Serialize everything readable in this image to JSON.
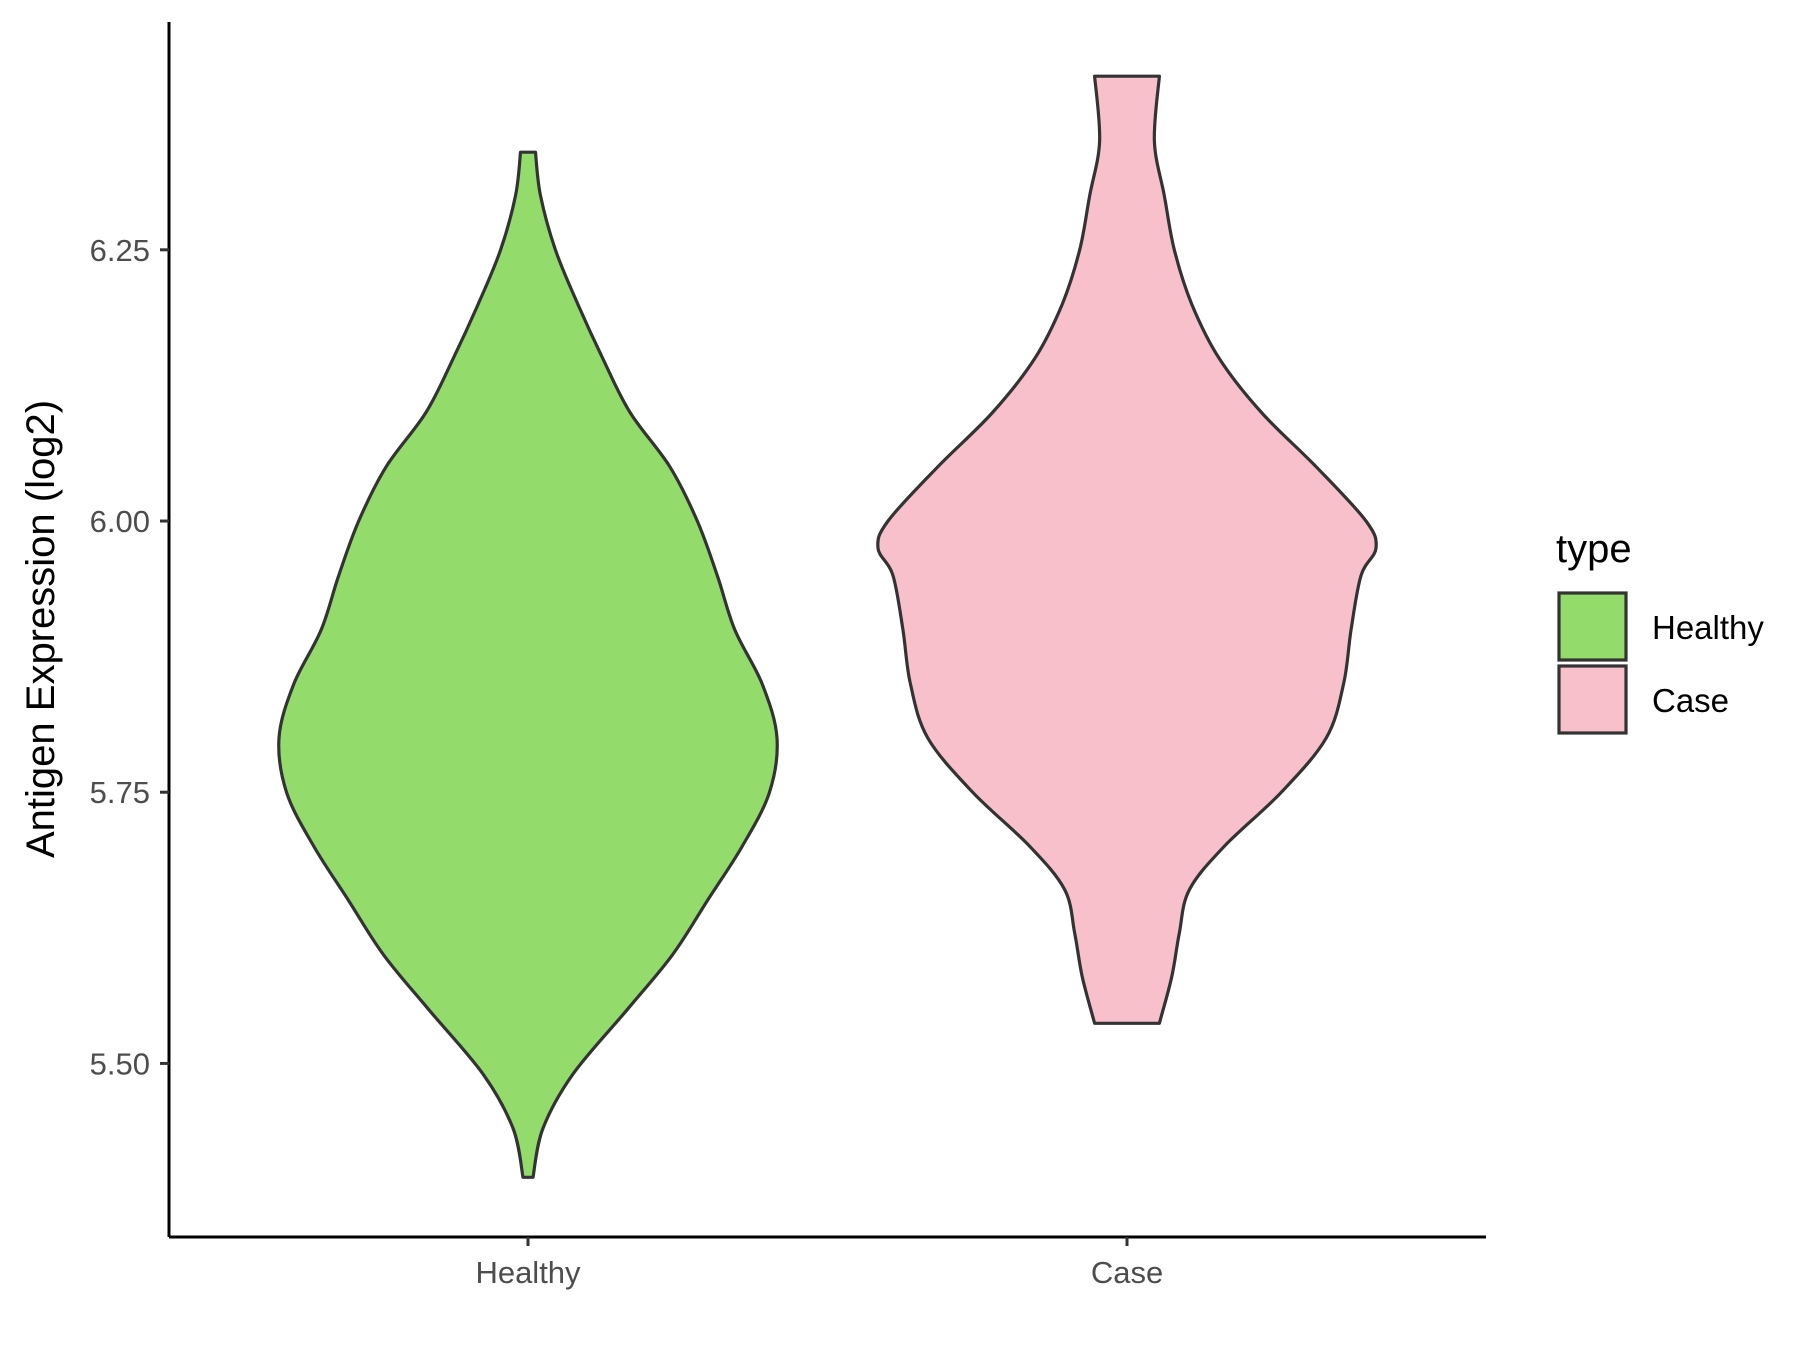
{
  "chart_data": {
    "type": "violin",
    "title": "",
    "xlabel": "",
    "ylabel": "Antigen Expression (log2)",
    "ylim": [
      5.34,
      6.46
    ],
    "yticks": [
      "5.50",
      "5.75",
      "6.00",
      "6.25"
    ],
    "grid": false,
    "legend": {
      "title": "type",
      "position": "right",
      "entries": [
        {
          "label": "Healthy",
          "color": "#93DC6B"
        },
        {
          "label": "Case",
          "color": "#F7C0CB"
        }
      ]
    },
    "categories": [
      "Healthy",
      "Case"
    ],
    "series": [
      {
        "name": "Healthy",
        "color": "#93DC6B",
        "min": 5.395,
        "max": 6.34,
        "density_profile": [
          [
            5.395,
            0.02
          ],
          [
            5.44,
            0.06
          ],
          [
            5.49,
            0.18
          ],
          [
            5.55,
            0.4
          ],
          [
            5.6,
            0.58
          ],
          [
            5.65,
            0.72
          ],
          [
            5.7,
            0.86
          ],
          [
            5.75,
            0.97
          ],
          [
            5.8,
            1.0
          ],
          [
            5.85,
            0.94
          ],
          [
            5.9,
            0.83
          ],
          [
            5.95,
            0.76
          ],
          [
            6.0,
            0.68
          ],
          [
            6.05,
            0.57
          ],
          [
            6.1,
            0.41
          ],
          [
            6.15,
            0.3
          ],
          [
            6.2,
            0.2
          ],
          [
            6.25,
            0.11
          ],
          [
            6.3,
            0.05
          ],
          [
            6.34,
            0.03
          ]
        ]
      },
      {
        "name": "Case",
        "color": "#F7C0CB",
        "min": 5.537,
        "max": 6.41,
        "density_profile": [
          [
            5.537,
            0.13
          ],
          [
            5.58,
            0.18
          ],
          [
            5.62,
            0.21
          ],
          [
            5.66,
            0.25
          ],
          [
            5.7,
            0.39
          ],
          [
            5.75,
            0.62
          ],
          [
            5.8,
            0.8
          ],
          [
            5.85,
            0.87
          ],
          [
            5.9,
            0.9
          ],
          [
            5.95,
            0.94
          ],
          [
            5.975,
            1.0
          ],
          [
            6.0,
            0.96
          ],
          [
            6.05,
            0.76
          ],
          [
            6.1,
            0.54
          ],
          [
            6.15,
            0.37
          ],
          [
            6.2,
            0.26
          ],
          [
            6.25,
            0.19
          ],
          [
            6.3,
            0.15
          ],
          [
            6.35,
            0.11
          ],
          [
            6.41,
            0.13
          ]
        ]
      }
    ]
  }
}
